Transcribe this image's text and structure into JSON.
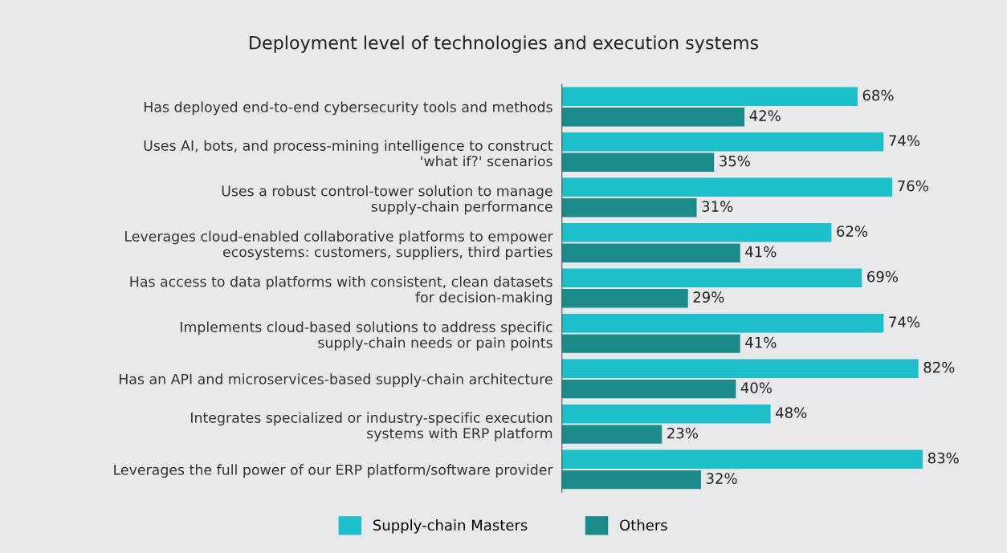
{
  "chart_data": {
    "type": "bar",
    "orientation": "horizontal",
    "title": "Deployment level of technologies and execution systems",
    "categories": [
      "Has deployed end-to-end cybersecurity tools and methods",
      "Uses AI, bots, and process-mining intelligence to construct\n'what if?' scenarios",
      "Uses a robust control-tower solution to manage\nsupply-chain performance",
      "Leverages cloud-enabled collaborative platforms to empower\necosystems: customers, suppliers, third parties",
      "Has access to data platforms with consistent, clean datasets\nfor decision-making",
      "Implements cloud-based solutions to address specific\nsupply-chain needs or pain points",
      "Has an API and microservices-based supply-chain architecture",
      "Integrates specialized or industry-specific execution\nsystems with ERP platform",
      "Leverages the full power of our ERP platform/software provider"
    ],
    "series": [
      {
        "name": "Supply-chain Masters",
        "color": "#1dbfca",
        "values": [
          68,
          74,
          76,
          62,
          69,
          74,
          82,
          48,
          83
        ],
        "value_labels": [
          "68%",
          "74%",
          "76%",
          "62%",
          "69%",
          "74%",
          "82%",
          "48%",
          "83%"
        ]
      },
      {
        "name": "Others",
        "color": "#1a8a8a",
        "values": [
          42,
          35,
          31,
          41,
          29,
          41,
          40,
          23,
          32
        ],
        "value_labels": [
          "42%",
          "35%",
          "31%",
          "41%",
          "29%",
          "41%",
          "40%",
          "23%",
          "32%"
        ]
      }
    ],
    "legend": "bottom",
    "grid": false
  }
}
